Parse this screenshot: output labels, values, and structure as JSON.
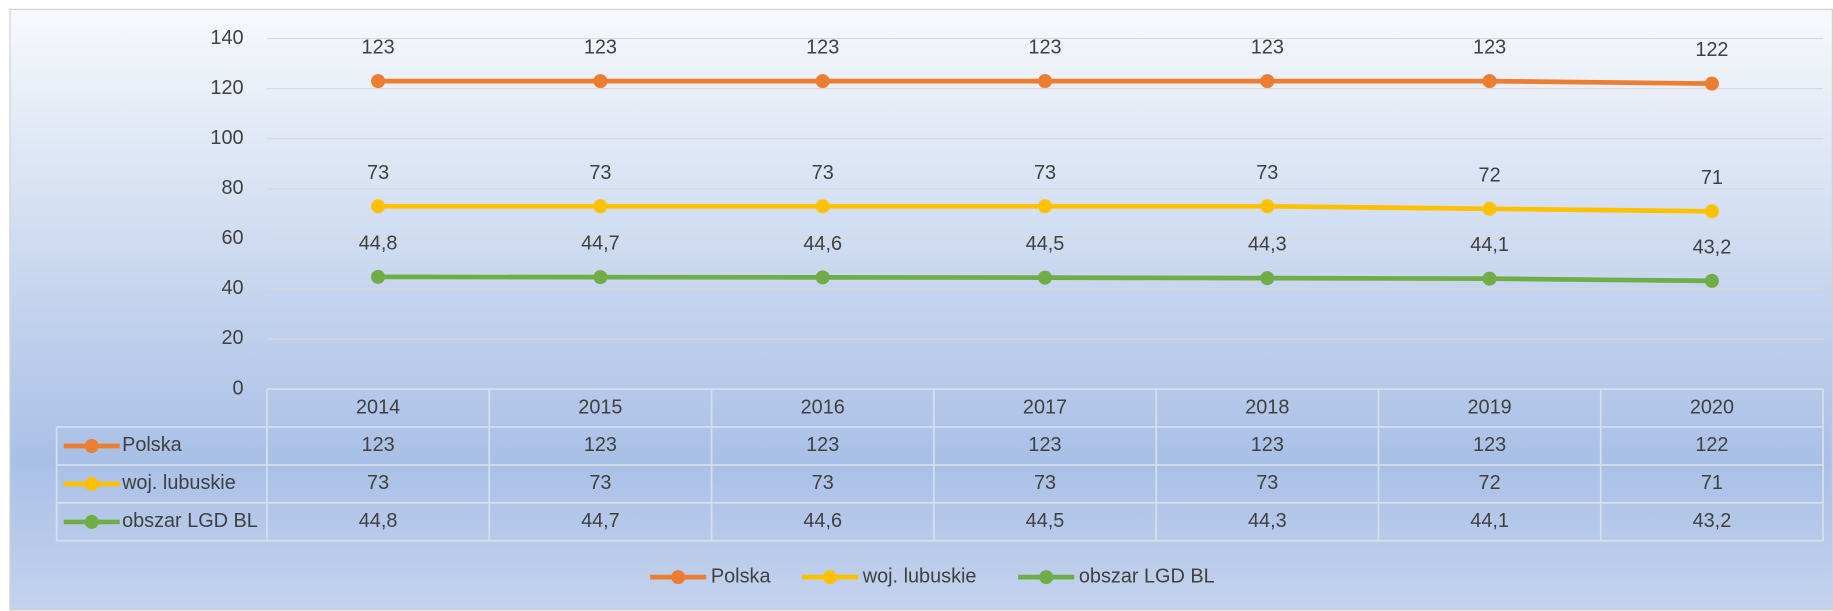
{
  "chart_data": {
    "type": "line",
    "categories": [
      "2014",
      "2015",
      "2016",
      "2017",
      "2018",
      "2019",
      "2020"
    ],
    "series": [
      {
        "name": "Polska",
        "color": "#ed7d31",
        "values": [
          123,
          123,
          123,
          123,
          123,
          123,
          122
        ]
      },
      {
        "name": "woj. lubuskie",
        "color": "#ffc000",
        "values": [
          73,
          73,
          73,
          73,
          73,
          72,
          71
        ]
      },
      {
        "name": "obszar LGD BL",
        "color": "#70ad47",
        "values": [
          44.8,
          44.7,
          44.6,
          44.5,
          44.3,
          44.1,
          43.2
        ],
        "value_labels": [
          "44,8",
          "44,7",
          "44,6",
          "44,5",
          "44,3",
          "44,1",
          "43,2"
        ]
      }
    ],
    "ylim": [
      0,
      140
    ],
    "yticks": [
      0,
      20,
      40,
      60,
      80,
      100,
      120,
      140
    ],
    "grid": true,
    "legend": "bottom"
  }
}
